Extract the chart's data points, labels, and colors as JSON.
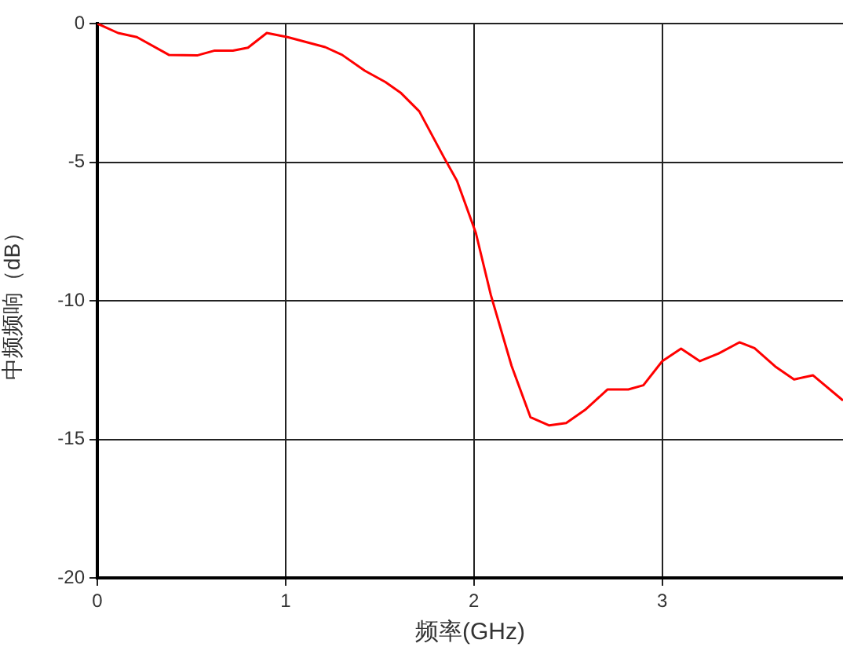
{
  "chart_data": {
    "type": "line",
    "xlabel": "频率(GHz)",
    "ylabel": "中频频响（dB）",
    "x": [
      0,
      0.11,
      0.21,
      0.38,
      0.53,
      0.62,
      0.72,
      0.8,
      0.9,
      1.01,
      1.21,
      1.3,
      1.42,
      1.53,
      1.61,
      1.71,
      1.84,
      1.91,
      2.01,
      2.09,
      2.2,
      2.3,
      2.4,
      2.49,
      2.59,
      2.71,
      2.82,
      2.9,
      3.0,
      3.1,
      3.2,
      3.3,
      3.41,
      3.49,
      3.6,
      3.7,
      3.8,
      3.96
    ],
    "values": [
      0,
      -0.34,
      -0.49,
      -1.13,
      -1.15,
      -0.98,
      -0.98,
      -0.87,
      -0.34,
      -0.49,
      -0.85,
      -1.13,
      -1.7,
      -2.11,
      -2.49,
      -3.17,
      -4.82,
      -5.67,
      -7.55,
      -9.8,
      -12.35,
      -14.2,
      -14.5,
      -14.41,
      -13.94,
      -13.2,
      -13.2,
      -13.05,
      -12.18,
      -11.73,
      -12.18,
      -11.9,
      -11.5,
      -11.71,
      -12.37,
      -12.84,
      -12.69,
      -13.6
    ],
    "color": "#ff0000",
    "xlim": [
      0,
      3.96
    ],
    "ylim": [
      -20,
      0
    ],
    "xticks": [
      0,
      1,
      2,
      3
    ],
    "yticks": [
      -20,
      -15,
      -10,
      -5,
      0
    ],
    "grid": true
  }
}
